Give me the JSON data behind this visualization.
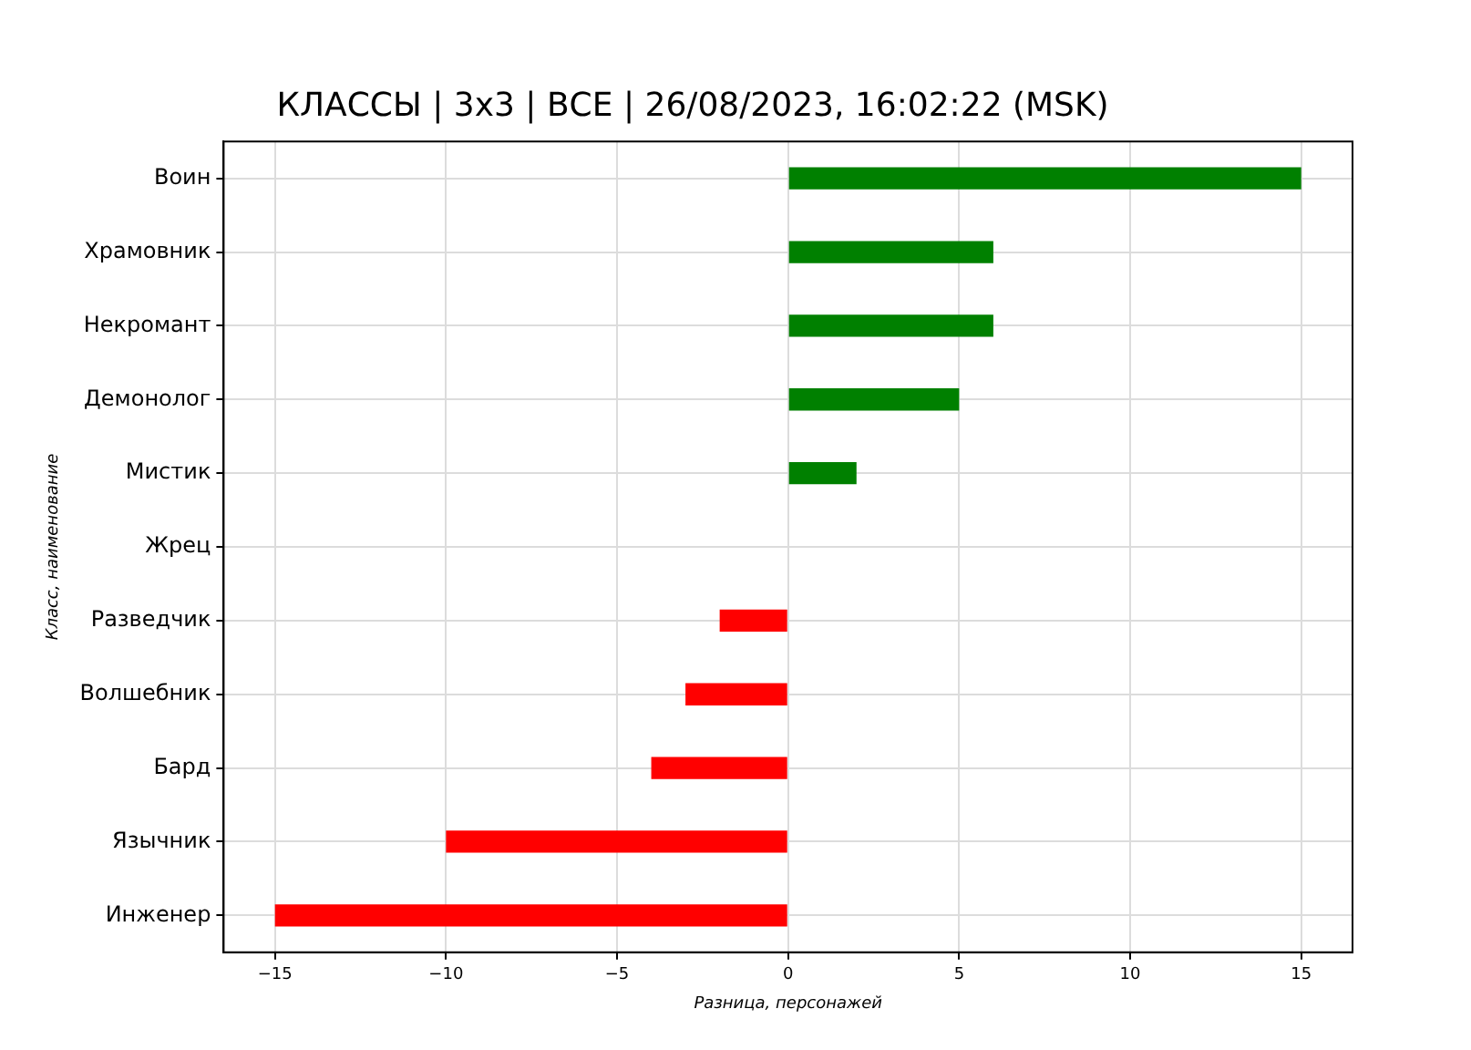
{
  "chart_data": {
    "type": "bar",
    "orientation": "horizontal",
    "title": "КЛАССЫ | 3x3 | ВСЕ | 26/08/2023, 16:02:22 (MSK)",
    "xlabel": "Разница, персонажей",
    "ylabel": "Класс, наименование",
    "categories": [
      "Воин",
      "Храмовник",
      "Некромант",
      "Демонолог",
      "Мистик",
      "Жрец",
      "Разведчик",
      "Волшебник",
      "Бард",
      "Язычник",
      "Инженер"
    ],
    "values": [
      15,
      6,
      6,
      5,
      2,
      0,
      -2,
      -3,
      -4,
      -10,
      -15
    ],
    "colors": [
      "#008000",
      "#008000",
      "#008000",
      "#008000",
      "#008000",
      "#008000",
      "#ff0000",
      "#ff0000",
      "#ff0000",
      "#ff0000",
      "#ff0000"
    ],
    "xlim": [
      -16.5,
      16.5
    ],
    "xticks": [
      {
        "value": -15,
        "label": "−15"
      },
      {
        "value": -10,
        "label": "−10"
      },
      {
        "value": -5,
        "label": "−5"
      },
      0,
      5,
      10,
      15
    ],
    "grid": true
  }
}
